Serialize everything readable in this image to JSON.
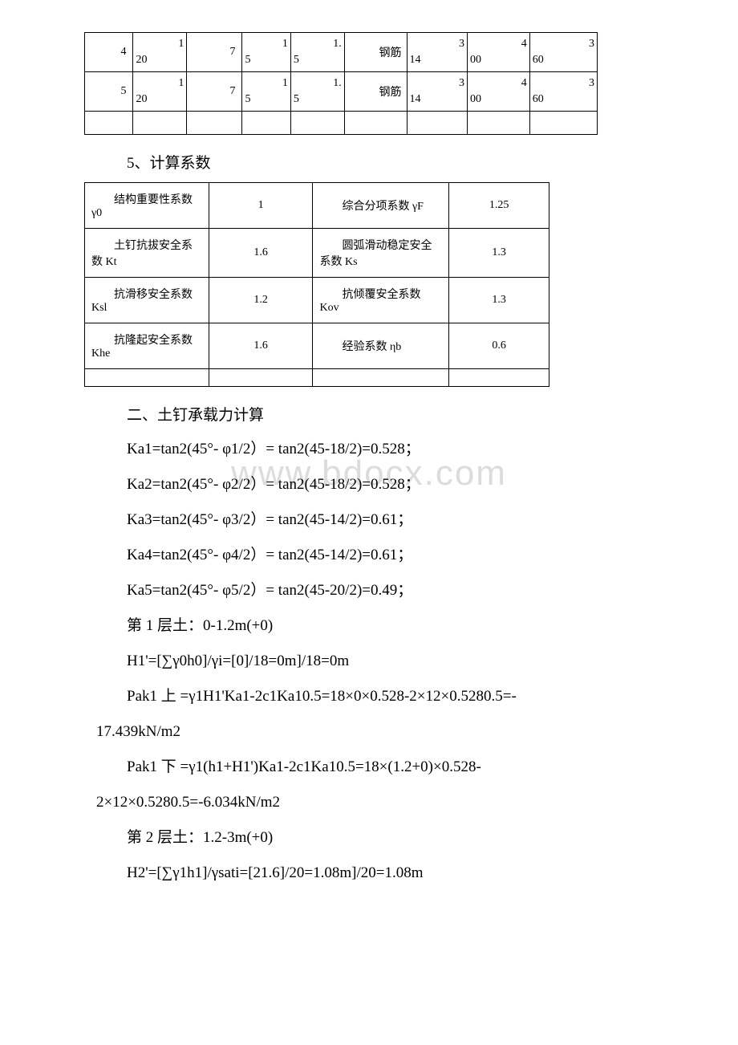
{
  "watermark": "www.bdocx.com",
  "table1": {
    "rows": [
      {
        "c0_l": "4",
        "c0_r": "",
        "c1_l": "20",
        "c1_r": "1",
        "c2": "7",
        "c3_l": "5",
        "c3_r": "1",
        "c4_l": "5",
        "c4_r": "1.",
        "c5": "钢筋",
        "c6_l": "14",
        "c6_r": "3",
        "c7_l": "00",
        "c7_r": "4",
        "c8_l": "60",
        "c8_r": "3"
      },
      {
        "c0_l": "5",
        "c0_r": "",
        "c1_l": "20",
        "c1_r": "1",
        "c2": "7",
        "c3_l": "5",
        "c3_r": "1",
        "c4_l": "5",
        "c4_r": "1.",
        "c5": "钢筋",
        "c6_l": "14",
        "c6_r": "3",
        "c7_l": "00",
        "c7_r": "4",
        "c8_l": "60",
        "c8_r": "3"
      }
    ],
    "col_widths": [
      "60",
      "70",
      "60",
      "60",
      "60",
      "70",
      "70",
      "70",
      "80"
    ]
  },
  "section1_title": "5、计算系数",
  "table2": {
    "rows": [
      {
        "l1": "结构重要性系数 γ0",
        "v1": "1",
        "l2": "综合分项系数 γF",
        "v2": "1.25"
      },
      {
        "l1": "土钉抗拔安全系数 Kt",
        "v1": "1.6",
        "l2": "圆弧滑动稳定安全系数 Ks",
        "v2": "1.3"
      },
      {
        "l1": "抗滑移安全系数 Ksl",
        "v1": "1.2",
        "l2": "抗倾覆安全系数 Kov",
        "v2": "1.3"
      },
      {
        "l1": "抗隆起安全系数 Khe",
        "v1": "1.6",
        "l2": "经验系数 ηb",
        "v2": "0.6"
      }
    ]
  },
  "section2_title": "二、土钉承载力计算",
  "calcs": [
    "Ka1=tan2(45°- φ1/2）= tan2(45-18/2)=0.528；",
    "Ka2=tan2(45°- φ2/2）= tan2(45-18/2)=0.528；",
    "Ka3=tan2(45°- φ3/2）= tan2(45-14/2)=0.61；",
    "Ka4=tan2(45°- φ4/2）= tan2(45-14/2)=0.61；",
    "Ka5=tan2(45°- φ5/2）= tan2(45-20/2)=0.49；",
    "第 1 层土：0-1.2m(+0)",
    "H1'=[∑γ0h0]/γi=[0]/18=0m]/18=0m"
  ],
  "pak1_line1": "Pak1 上 =γ1H1'Ka1-2c1Ka10.5=18×0×0.528-2×12×0.5280.5=-",
  "pak1_line2": "17.439kN/m2",
  "pak2_line1": "Pak1 下 =γ1(h1+H1')Ka1-2c1Ka10.5=18×(1.2+0)×0.528-",
  "pak2_line2": "2×12×0.5280.5=-6.034kN/m2",
  "calcs2": [
    "第 2 层土：1.2-3m(+0)",
    "H2'=[∑γ1h1]/γsati=[21.6]/20=1.08m]/20=1.08m"
  ]
}
